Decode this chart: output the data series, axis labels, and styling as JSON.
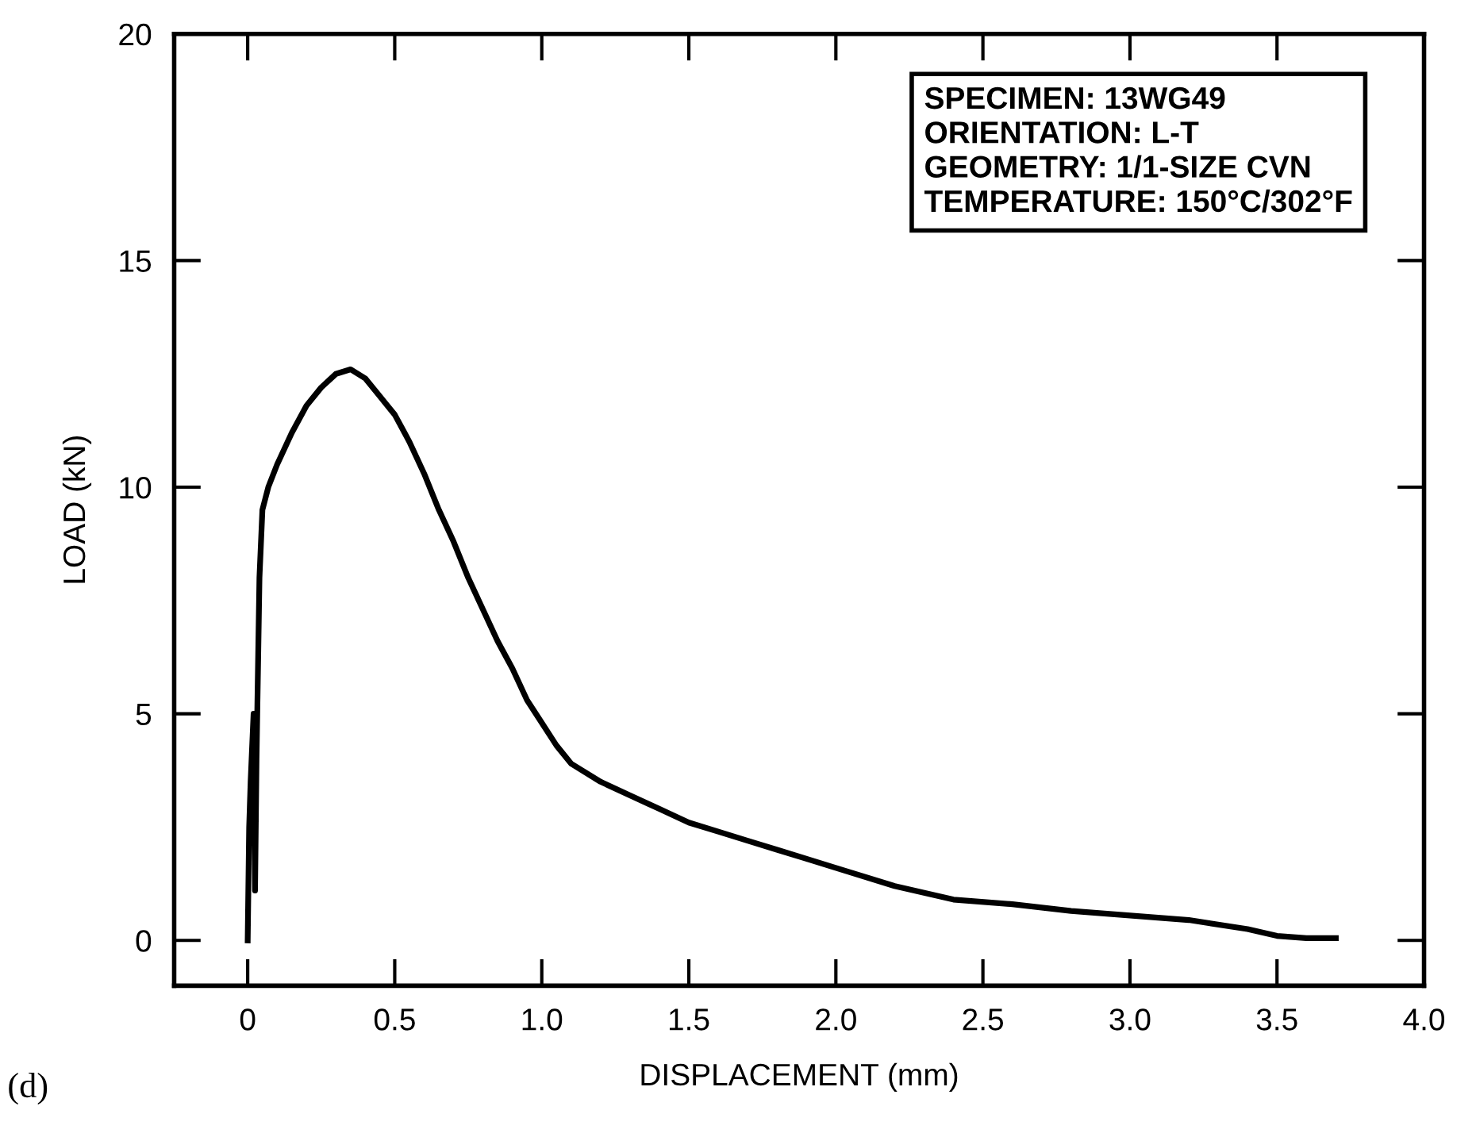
{
  "chart_data": {
    "type": "line",
    "xlabel": "DISPLACEMENT (mm)",
    "ylabel": "LOAD (kN)",
    "annotations": [
      "SPECIMEN: 13WG49\nORIENTATION: L-T\nGEOMETRY: 1/1-SIZE CVN\nTEMPERATURE: 150°C/302°F",
      "(d)"
    ],
    "x": [
      0,
      0.005,
      0.01,
      0.02,
      0.025,
      0.03,
      0.04,
      0.05,
      0.07,
      0.1,
      0.15,
      0.2,
      0.25,
      0.3,
      0.35,
      0.4,
      0.45,
      0.5,
      0.55,
      0.6,
      0.65,
      0.7,
      0.75,
      0.8,
      0.85,
      0.9,
      0.95,
      1.0,
      1.05,
      1.1,
      1.2,
      1.3,
      1.4,
      1.5,
      1.6,
      1.7,
      1.8,
      1.9,
      2.0,
      2.2,
      2.4,
      2.6,
      2.8,
      3.0,
      3.2,
      3.4,
      3.5,
      3.6,
      3.7
    ],
    "series": [
      {
        "color": "#000000",
        "values": [
          0,
          2.5,
          3.5,
          5.0,
          1.1,
          4.0,
          8.0,
          9.5,
          10.0,
          10.5,
          11.2,
          11.8,
          12.2,
          12.5,
          12.6,
          12.4,
          12.0,
          11.6,
          11.0,
          10.3,
          9.5,
          8.8,
          8.0,
          7.3,
          6.6,
          6.0,
          5.3,
          4.8,
          4.3,
          3.9,
          3.5,
          3.2,
          2.9,
          2.6,
          2.4,
          2.2,
          2.0,
          1.8,
          1.6,
          1.2,
          0.9,
          0.8,
          0.65,
          0.55,
          0.45,
          0.25,
          0.1,
          0.05,
          0.05
        ]
      }
    ],
    "xlim": [
      -0.25,
      4.0
    ],
    "ylim": [
      -1,
      20
    ],
    "xticks": [
      0,
      {
        "value": 0.5,
        "label": "0.5"
      },
      {
        "value": 1.0,
        "label": "1.0"
      },
      1.5,
      {
        "value": 2.0,
        "label": "2.0"
      },
      2.5,
      {
        "value": 3.0,
        "label": "3.0"
      },
      3.5,
      {
        "value": 4.0,
        "label": "4.0"
      }
    ],
    "yticks": [
      0,
      5,
      10,
      15,
      20
    ],
    "grid": false,
    "marker": "none",
    "line_style": "solid"
  }
}
